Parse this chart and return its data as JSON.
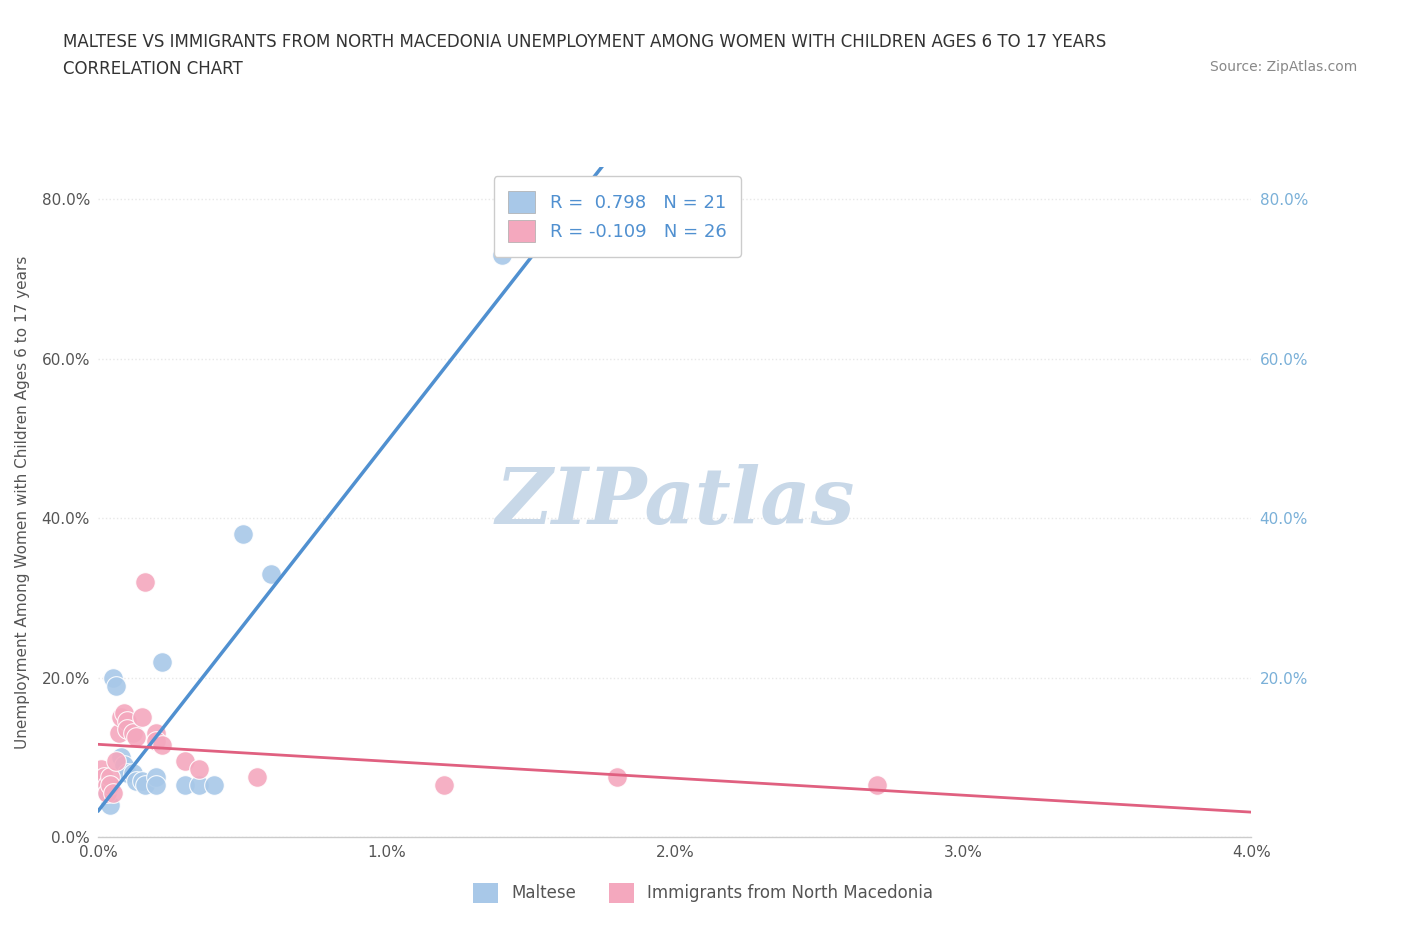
{
  "title_line1": "MALTESE VS IMMIGRANTS FROM NORTH MACEDONIA UNEMPLOYMENT AMONG WOMEN WITH CHILDREN AGES 6 TO 17 YEARS",
  "title_line2": "CORRELATION CHART",
  "source_text": "Source: ZipAtlas.com",
  "ylabel": "Unemployment Among Women with Children Ages 6 to 17 years",
  "xlim": [
    0.0,
    0.04
  ],
  "ylim": [
    0.0,
    0.84
  ],
  "x_ticks": [
    0.0,
    0.01,
    0.02,
    0.03,
    0.04
  ],
  "x_tick_labels": [
    "0.0%",
    "1.0%",
    "2.0%",
    "3.0%",
    "4.0%"
  ],
  "y_ticks_left": [
    0.0,
    0.2,
    0.4,
    0.6,
    0.8
  ],
  "y_tick_labels_left": [
    "0.0%",
    "20.0%",
    "40.0%",
    "60.0%",
    "80.0%"
  ],
  "y_ticks_right": [
    0.2,
    0.4,
    0.6,
    0.8
  ],
  "y_tick_labels_right": [
    "20.0%",
    "40.0%",
    "60.0%",
    "80.0%"
  ],
  "maltese_color": "#a8c8e8",
  "immigrants_color": "#f4a8be",
  "trendline_maltese_color": "#5090d0",
  "trendline_immigrants_color": "#e06080",
  "trendline_extrapolate_color": "#b8c8d8",
  "watermark_color": "#c8d8e8",
  "watermark_text": "ZIPatlas",
  "R_maltese": 0.798,
  "N_maltese": 21,
  "R_immigrants": -0.109,
  "N_immigrants": 26,
  "maltese_scatter": [
    [
      0.0002,
      0.065
    ],
    [
      0.0003,
      0.055
    ],
    [
      0.0004,
      0.04
    ],
    [
      0.0005,
      0.2
    ],
    [
      0.0006,
      0.19
    ],
    [
      0.0008,
      0.1
    ],
    [
      0.0009,
      0.09
    ],
    [
      0.001,
      0.08
    ],
    [
      0.0012,
      0.08
    ],
    [
      0.0013,
      0.07
    ],
    [
      0.0015,
      0.07
    ],
    [
      0.0016,
      0.065
    ],
    [
      0.002,
      0.075
    ],
    [
      0.002,
      0.065
    ],
    [
      0.0022,
      0.22
    ],
    [
      0.003,
      0.065
    ],
    [
      0.0035,
      0.065
    ],
    [
      0.004,
      0.065
    ],
    [
      0.005,
      0.38
    ],
    [
      0.006,
      0.33
    ],
    [
      0.014,
      0.73
    ]
  ],
  "immigrants_scatter": [
    [
      0.0001,
      0.085
    ],
    [
      0.0002,
      0.075
    ],
    [
      0.0003,
      0.065
    ],
    [
      0.0003,
      0.055
    ],
    [
      0.0004,
      0.075
    ],
    [
      0.0004,
      0.065
    ],
    [
      0.0005,
      0.055
    ],
    [
      0.0006,
      0.095
    ],
    [
      0.0007,
      0.13
    ],
    [
      0.0008,
      0.15
    ],
    [
      0.0009,
      0.155
    ],
    [
      0.001,
      0.145
    ],
    [
      0.001,
      0.135
    ],
    [
      0.0012,
      0.13
    ],
    [
      0.0013,
      0.125
    ],
    [
      0.0015,
      0.15
    ],
    [
      0.0016,
      0.32
    ],
    [
      0.002,
      0.13
    ],
    [
      0.002,
      0.12
    ],
    [
      0.0022,
      0.115
    ],
    [
      0.003,
      0.095
    ],
    [
      0.0035,
      0.085
    ],
    [
      0.0055,
      0.075
    ],
    [
      0.012,
      0.065
    ],
    [
      0.018,
      0.075
    ],
    [
      0.027,
      0.065
    ]
  ],
  "background_color": "#ffffff",
  "grid_color": "#e8e8e8"
}
